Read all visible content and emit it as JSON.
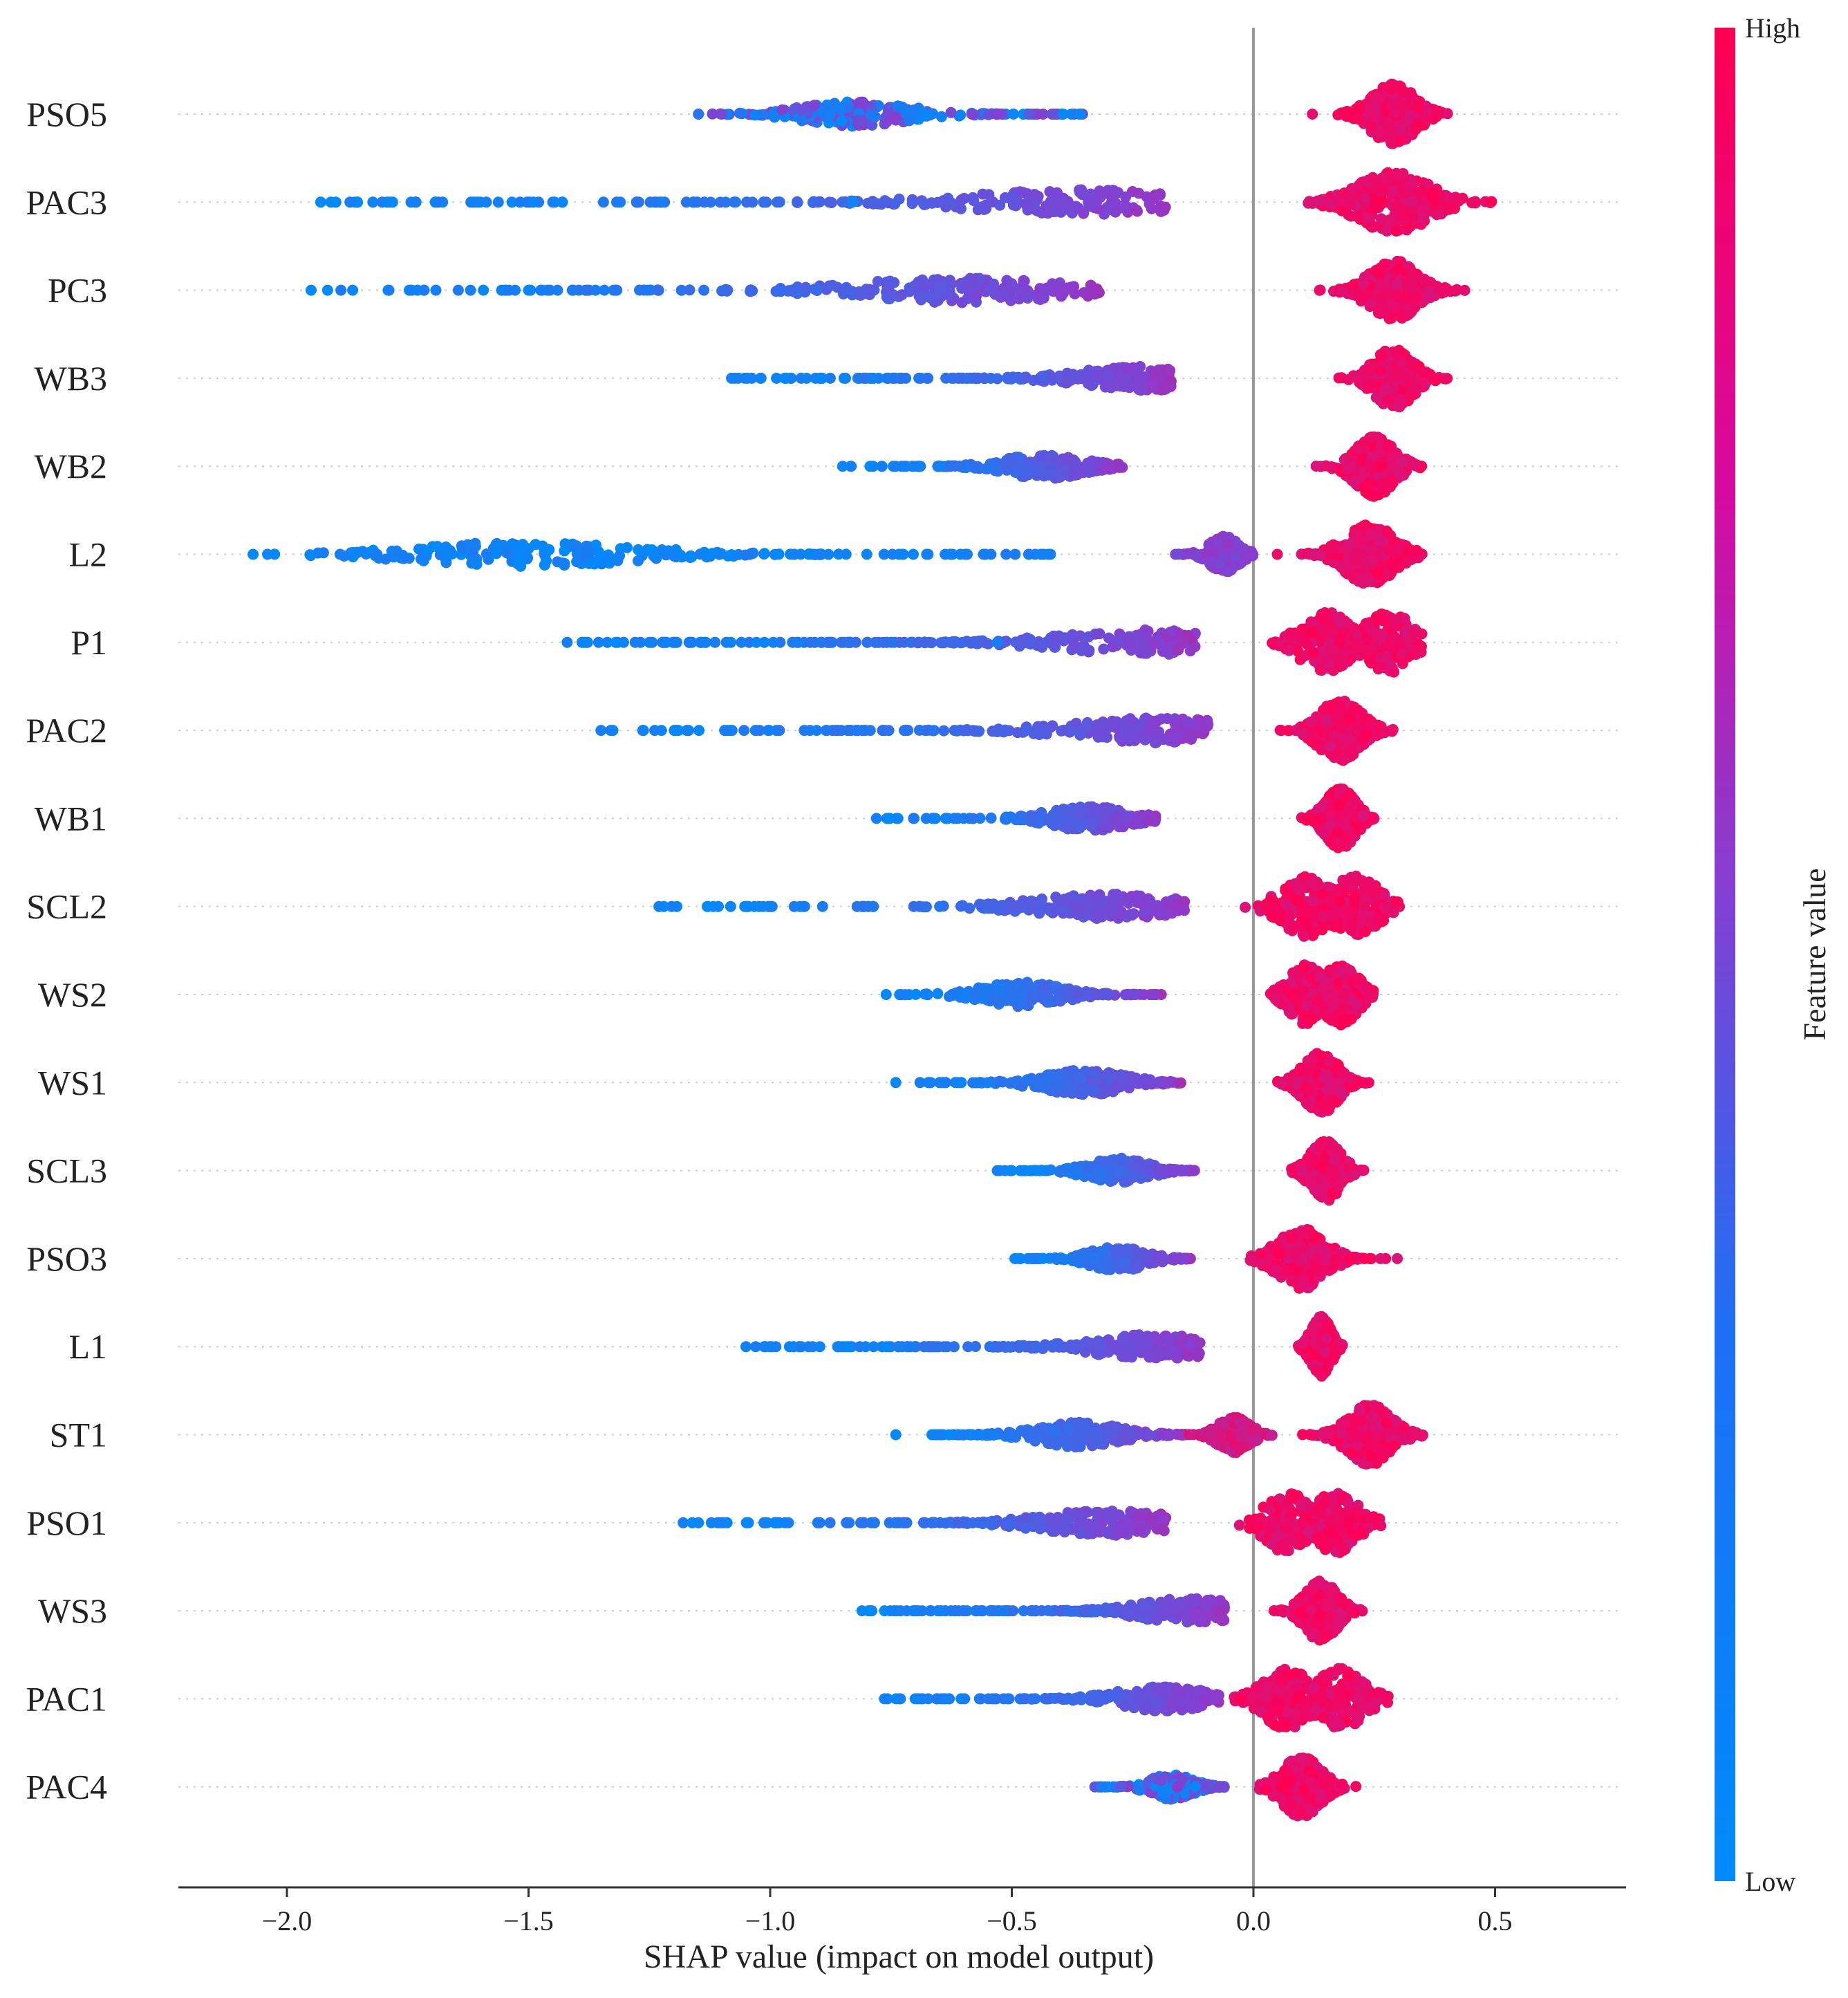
{
  "chart_data": {
    "type": "scatter",
    "subtype": "shap-beeswarm-summary",
    "xlabel": "SHAP value (impact on model output)",
    "xlim": [
      -2.2,
      0.75
    ],
    "xticks": [
      {
        "value": -2.0,
        "label": "−2.0"
      },
      {
        "value": -1.5,
        "label": "−1.5"
      },
      {
        "value": -1.0,
        "label": "−1.0"
      },
      {
        "value": -0.5,
        "label": "−0.5"
      },
      {
        "value": 0.0,
        "label": "0.0"
      },
      {
        "value": 0.5,
        "label": "0.5"
      }
    ],
    "zero_line": 0.0,
    "colorbar": {
      "title": "Feature value",
      "high_label": "High",
      "low_label": "Low",
      "low_color": "#008bfb",
      "mid_color": "#8a3ccf",
      "high_color": "#ff0052"
    },
    "features": [
      {
        "name": "PSO5",
        "negative": {
          "min": -1.15,
          "max": -0.35,
          "center": -0.82,
          "density": "uniform-dense",
          "color": "mixed-blue-purple"
        },
        "positive": {
          "min": 0.12,
          "max": 0.41,
          "center": 0.29,
          "color": "high"
        }
      },
      {
        "name": "PAC3",
        "negative": {
          "min": -1.93,
          "max": -0.18,
          "center": -0.35,
          "outliers": [
            -1.93,
            -1.6,
            -1.49,
            -1.45,
            -1.43,
            -0.83
          ],
          "color": "blue-to-purple"
        },
        "positive": {
          "min": 0.11,
          "max": 0.62,
          "center": 0.29,
          "color": "high"
        }
      },
      {
        "name": "PC3",
        "negative": {
          "min": -1.95,
          "max": -0.31,
          "center": -0.6,
          "outliers": [
            -1.95,
            -1.62,
            -1.5,
            -1.44
          ],
          "color": "blue-to-purple"
        },
        "positive": {
          "min": 0.12,
          "max": 0.44,
          "center": 0.29,
          "color": "high"
        }
      },
      {
        "name": "WB3",
        "negative": {
          "min": -1.08,
          "max": -0.17,
          "center": -0.23,
          "outliers": [
            -1.08,
            -1.02,
            -0.97
          ],
          "color": "blue-to-purple"
        },
        "positive": {
          "min": 0.17,
          "max": 0.42,
          "center": 0.29,
          "color": "high"
        }
      },
      {
        "name": "WB2",
        "negative": {
          "min": -0.85,
          "max": -0.27,
          "center": -0.43,
          "outliers": [
            -0.85
          ],
          "color": "blue-to-purple"
        },
        "positive": {
          "min": 0.12,
          "max": 0.37,
          "center": 0.25,
          "color": "high"
        }
      },
      {
        "name": "L2",
        "negative": {
          "min": -2.07,
          "max": -0.42,
          "center": -1.5,
          "outliers": [
            -2.07,
            -2.04,
            -1.89,
            -0.95,
            -0.8,
            -0.42
          ],
          "color": "blue"
        },
        "middle": {
          "min": -0.18,
          "max": 0.0,
          "center": -0.06,
          "color": "purple"
        },
        "positive": {
          "min": 0.02,
          "max": 0.35,
          "center": 0.24,
          "color": "high"
        }
      },
      {
        "name": "P1",
        "negative": {
          "min": -1.42,
          "max": -0.12,
          "center": -0.22,
          "outliers": [
            -1.42,
            -1.25,
            -0.53
          ],
          "color": "blue-to-purple"
        },
        "positive": {
          "min": 0.01,
          "max": 0.35,
          "center": 0.15,
          "second_center": 0.28,
          "color": "high"
        }
      },
      {
        "name": "PAC2",
        "negative": {
          "min": -1.35,
          "max": -0.08,
          "center": -0.2,
          "outliers": [
            -1.35,
            -1.33,
            -1.19
          ],
          "color": "blue-to-purple"
        },
        "positive": {
          "min": 0.02,
          "max": 0.3,
          "center": 0.18,
          "color": "high"
        }
      },
      {
        "name": "WB1",
        "negative": {
          "min": -0.78,
          "max": -0.2,
          "center": -0.34,
          "outliers": [
            -0.78
          ],
          "color": "blue-to-purple"
        },
        "positive": {
          "min": 0.08,
          "max": 0.26,
          "center": 0.18,
          "color": "high"
        }
      },
      {
        "name": "SCL2",
        "negative": {
          "min": -1.23,
          "max": -0.14,
          "center": -0.3,
          "outliers": [
            -1.23
          ],
          "color": "blue-to-purple"
        },
        "positive": {
          "min": -0.02,
          "max": 0.31,
          "center": 0.11,
          "second_center": 0.21,
          "color": "high"
        }
      },
      {
        "name": "WS2",
        "negative": {
          "min": -0.76,
          "max": -0.19,
          "center": -0.48,
          "outliers": [
            -0.76
          ],
          "color": "blue-to-purple"
        },
        "positive": {
          "min": 0.03,
          "max": 0.25,
          "center": 0.11,
          "second_center": 0.18,
          "color": "high"
        }
      },
      {
        "name": "WS1",
        "negative": {
          "min": -0.74,
          "max": -0.15,
          "center": -0.35,
          "outliers": [
            -0.74,
            -0.69
          ],
          "color": "blue-to-purple"
        },
        "positive": {
          "min": 0.04,
          "max": 0.26,
          "center": 0.14,
          "color": "high"
        }
      },
      {
        "name": "SCL3",
        "negative": {
          "min": -0.53,
          "max": -0.12,
          "center": -0.28,
          "outliers": [
            -0.53,
            -0.5
          ],
          "color": "blue-to-purple"
        },
        "positive": {
          "min": 0.06,
          "max": 0.24,
          "center": 0.15,
          "color": "high"
        }
      },
      {
        "name": "PSO3",
        "negative": {
          "min": -0.51,
          "max": -0.13,
          "center": -0.28,
          "color": "blue-to-purple"
        },
        "positive": {
          "min": -0.01,
          "max": 0.31,
          "center": 0.1,
          "color": "high"
        }
      },
      {
        "name": "L1",
        "negative": {
          "min": -1.05,
          "max": -0.11,
          "center": -0.2,
          "outliers": [
            -1.05,
            -1.03,
            -0.86,
            -0.76,
            -0.71
          ],
          "color": "blue-to-purple"
        },
        "positive": {
          "min": 0.09,
          "max": 0.19,
          "center": 0.14,
          "color": "high"
        }
      },
      {
        "name": "ST1",
        "negative": {
          "min": -0.74,
          "max": -0.14,
          "center": -0.36,
          "outliers": [
            -0.74
          ],
          "color": "blue-to-purple"
        },
        "middle": {
          "min": -0.14,
          "max": 0.05,
          "center": -0.04,
          "color": "magenta"
        },
        "positive": {
          "min": 0.07,
          "max": 0.36,
          "center": 0.24,
          "color": "high"
        }
      },
      {
        "name": "PSO1",
        "negative": {
          "min": -1.18,
          "max": -0.18,
          "center": -0.3,
          "outliers": [
            -1.18
          ],
          "color": "blue-to-purple"
        },
        "positive": {
          "min": -0.03,
          "max": 0.27,
          "center": 0.07,
          "second_center": 0.17,
          "color": "high"
        }
      },
      {
        "name": "WS3",
        "negative": {
          "min": -0.81,
          "max": -0.06,
          "center": -0.13,
          "outliers": [
            -0.81
          ],
          "color": "blue-to-purple"
        },
        "positive": {
          "min": 0.03,
          "max": 0.23,
          "center": 0.14,
          "color": "high"
        }
      },
      {
        "name": "PAC1",
        "negative": {
          "min": -0.79,
          "max": -0.07,
          "center": -0.18,
          "color": "blue-to-purple"
        },
        "positive": {
          "min": -0.04,
          "max": 0.28,
          "center": 0.07,
          "second_center": 0.18,
          "color": "high"
        }
      },
      {
        "name": "PAC4",
        "negative": {
          "min": -0.34,
          "max": -0.06,
          "center": -0.17,
          "color": "mixed-blue-purple"
        },
        "positive": {
          "min": 0.0,
          "max": 0.25,
          "center": 0.1,
          "color": "high"
        }
      }
    ]
  }
}
